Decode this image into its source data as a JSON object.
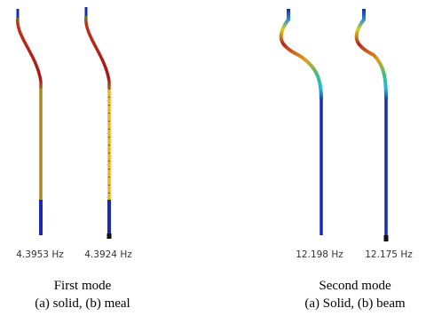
{
  "panels": [
    {
      "frequencies": [
        "4.3953 Hz",
        "4.3924 Hz"
      ],
      "caption": {
        "title": "First mode",
        "subtitle": "(a) solid, (b) meal"
      }
    },
    {
      "frequencies": [
        "12.198 Hz",
        "12.175 Hz"
      ],
      "caption": {
        "title": "Second mode",
        "subtitle": "(a) Solid, (b) beam"
      }
    }
  ]
}
